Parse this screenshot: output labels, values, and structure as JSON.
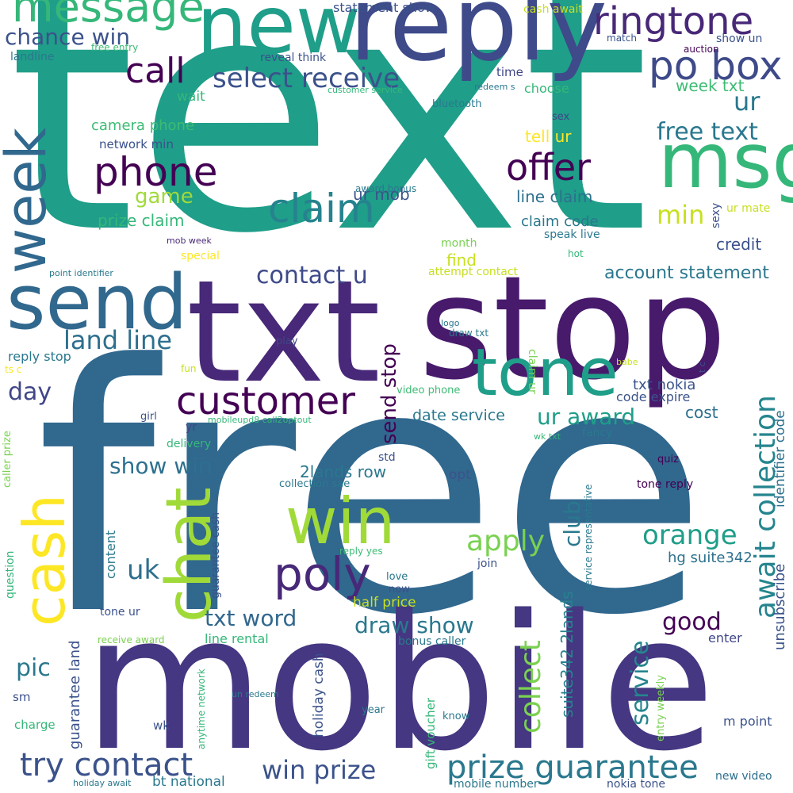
{
  "wordcloud": {
    "words": [
      {
        "text": "text",
        "color": "#1f9e89"
      },
      {
        "text": "free",
        "color": "#31688e"
      },
      {
        "text": "mobile",
        "color": "#453781"
      },
      {
        "text": "txt",
        "color": "#482878"
      },
      {
        "text": "stop",
        "color": "#481a6c"
      },
      {
        "text": "reply",
        "color": "#3e4a89"
      },
      {
        "text": "new",
        "color": "#1f9e89"
      },
      {
        "text": "send",
        "color": "#31688e"
      },
      {
        "text": "msg",
        "color": "#35b779"
      },
      {
        "text": "tone",
        "color": "#1f9e89"
      },
      {
        "text": "win",
        "color": "#a0da39"
      },
      {
        "text": "chat",
        "color": "#a0da39"
      },
      {
        "text": "cash",
        "color": "#fde725"
      },
      {
        "text": "week",
        "color": "#31688e"
      },
      {
        "text": "message",
        "color": "#35b779"
      },
      {
        "text": "ringtone",
        "color": "#482878"
      },
      {
        "text": "po box",
        "color": "#3e4a89"
      },
      {
        "text": "phone",
        "color": "#440154"
      },
      {
        "text": "claim",
        "color": "#26828e"
      },
      {
        "text": "offer",
        "color": "#440154"
      },
      {
        "text": "customer",
        "color": "#440154"
      },
      {
        "text": "poly",
        "color": "#482878"
      },
      {
        "text": "prize guarantee",
        "color": "#2a788e"
      },
      {
        "text": "try contact",
        "color": "#3b528b"
      },
      {
        "text": "call",
        "color": "#440154"
      },
      {
        "text": "select receive",
        "color": "#3b528b"
      },
      {
        "text": "chance win",
        "color": "#3b528b"
      },
      {
        "text": "await collection",
        "color": "#25858e"
      },
      {
        "text": "free text",
        "color": "#2a788e"
      },
      {
        "text": "orange",
        "color": "#1f9e89"
      },
      {
        "text": "contact u",
        "color": "#3e4a89"
      },
      {
        "text": "land line",
        "color": "#2e6f8e"
      },
      {
        "text": "account statement",
        "color": "#2a788e"
      },
      {
        "text": "win prize",
        "color": "#3b528b"
      },
      {
        "text": "customer",
        "color": "#440154"
      },
      {
        "text": "apply",
        "color": "#7ad151"
      },
      {
        "text": "collect",
        "color": "#7ad151"
      },
      {
        "text": "service",
        "color": "#25858e"
      },
      {
        "text": "draw show",
        "color": "#2a788e"
      },
      {
        "text": "send stop",
        "color": "#440154"
      },
      {
        "text": "ur award",
        "color": "#1f9e89"
      },
      {
        "text": "club",
        "color": "#2a788e"
      },
      {
        "text": "txt word",
        "color": "#31688e"
      },
      {
        "text": "show win",
        "color": "#2d708e"
      },
      {
        "text": "uk",
        "color": "#2e6f8e"
      },
      {
        "text": "day",
        "color": "#404688"
      },
      {
        "text": "min",
        "color": "#c8e020"
      },
      {
        "text": "ur",
        "color": "#2a788e"
      },
      {
        "text": "game",
        "color": "#a0da39"
      },
      {
        "text": "pic",
        "color": "#2a788e"
      },
      {
        "text": "good",
        "color": "#440154"
      },
      {
        "text": "prize claim",
        "color": "#35b779"
      },
      {
        "text": "ur mob",
        "color": "#3b528b"
      },
      {
        "text": "camera phone",
        "color": "#3dbc74"
      },
      {
        "text": "network min",
        "color": "#3b528b"
      },
      {
        "text": "week txt",
        "color": "#3dbc74"
      },
      {
        "text": "tell ur",
        "color": "#fde725"
      },
      {
        "text": "line claim",
        "color": "#2d708e"
      },
      {
        "text": "claim code",
        "color": "#2a788e"
      },
      {
        "text": "find",
        "color": "#c8e020"
      },
      {
        "text": "credit",
        "color": "#3b528b"
      },
      {
        "text": "cost",
        "color": "#2d708e"
      },
      {
        "text": "date service",
        "color": "#2a788e"
      },
      {
        "text": "2lands row",
        "color": "#2a788e"
      },
      {
        "text": "txt nokia",
        "color": "#3b528b"
      },
      {
        "text": "code expire",
        "color": "#3b528b"
      },
      {
        "text": "identifier code",
        "color": "#2d708e"
      },
      {
        "text": "unsubscribe",
        "color": "#3b528b"
      },
      {
        "text": "hg suite342",
        "color": "#2d708e"
      },
      {
        "text": "suite342 2lands",
        "color": "#26828e"
      },
      {
        "text": "half price",
        "color": "#c8e020"
      },
      {
        "text": "enter",
        "color": "#404688"
      },
      {
        "text": "m point",
        "color": "#3b528b"
      },
      {
        "text": "new video",
        "color": "#2d708e"
      },
      {
        "text": "nokia tone",
        "color": "#3b528b"
      },
      {
        "text": "mobile number",
        "color": "#2a788e"
      },
      {
        "text": "bt national",
        "color": "#2a788e"
      },
      {
        "text": "holiday cash",
        "color": "#3b528b"
      },
      {
        "text": "guarantee land",
        "color": "#3b528b"
      },
      {
        "text": "line rental",
        "color": "#35b779"
      },
      {
        "text": "reply stop",
        "color": "#2a788e"
      },
      {
        "text": "statement show",
        "color": "#3b528b"
      },
      {
        "text": "cash await",
        "color": "#c8e020"
      },
      {
        "text": "landline",
        "color": "#2a788e"
      },
      {
        "text": "free entry",
        "color": "#3dbc74"
      },
      {
        "text": "reveal think",
        "color": "#3b528b"
      },
      {
        "text": "time",
        "color": "#404688"
      },
      {
        "text": "choose",
        "color": "#35b779"
      },
      {
        "text": "match",
        "color": "#3b528b"
      },
      {
        "text": "auction",
        "color": "#440154"
      },
      {
        "text": "show un",
        "color": "#3b528b"
      },
      {
        "text": "customer service",
        "color": "#35b779"
      },
      {
        "text": "redeem s",
        "color": "#2a788e"
      },
      {
        "text": "wait",
        "color": "#35b779"
      },
      {
        "text": "bluetooth",
        "color": "#2a788e"
      },
      {
        "text": "sex",
        "color": "#404688"
      },
      {
        "text": "award bonus",
        "color": "#2a788e"
      },
      {
        "text": "speak live",
        "color": "#2a788e"
      },
      {
        "text": "sexy",
        "color": "#3b528b"
      },
      {
        "text": "ur mate",
        "color": "#c8e020"
      },
      {
        "text": "mob week",
        "color": "#482878"
      },
      {
        "text": "special",
        "color": "#fde725"
      },
      {
        "text": "month",
        "color": "#7ad151"
      },
      {
        "text": "hot",
        "color": "#35b779"
      },
      {
        "text": "attempt contact",
        "color": "#c8e020"
      },
      {
        "text": "point identifier",
        "color": "#2a788e"
      },
      {
        "text": "logo",
        "color": "#2a788e"
      },
      {
        "text": "draw txt",
        "color": "#2a788e"
      },
      {
        "text": "play",
        "color": "#404688"
      },
      {
        "text": "claim ur",
        "color": "#7ad151"
      },
      {
        "text": "babe",
        "color": "#c8e020"
      },
      {
        "text": "t c",
        "color": "#3b528b"
      },
      {
        "text": "ts c",
        "color": "#fde725"
      },
      {
        "text": "fun",
        "color": "#c8e020"
      },
      {
        "text": "video phone",
        "color": "#3dbc74"
      },
      {
        "text": "fancy",
        "color": "#2a788e"
      },
      {
        "text": "wk txt",
        "color": "#35b779"
      },
      {
        "text": "girl",
        "color": "#3b528b"
      },
      {
        "text": "yr",
        "color": "#404688"
      },
      {
        "text": "delivery",
        "color": "#35b779"
      },
      {
        "text": "mobileupd8 call2optout",
        "color": "#35b779"
      },
      {
        "text": "caller prize",
        "color": "#7ad151"
      },
      {
        "text": "guarantee cash",
        "color": "#3b528b"
      },
      {
        "text": "std",
        "color": "#3b528b"
      },
      {
        "text": "opt",
        "color": "#3b528b"
      },
      {
        "text": "collection sae",
        "color": "#2a788e"
      },
      {
        "text": "service representative",
        "color": "#2a788e"
      },
      {
        "text": "quiz",
        "color": "#440154"
      },
      {
        "text": "tone reply",
        "color": "#440154"
      },
      {
        "text": "content",
        "color": "#2a788e"
      },
      {
        "text": "question",
        "color": "#35b779"
      },
      {
        "text": "reply yes",
        "color": "#3dbc74"
      },
      {
        "text": "join",
        "color": "#3b528b"
      },
      {
        "text": "love",
        "color": "#2a788e"
      },
      {
        "text": "now",
        "color": "#3b528b"
      },
      {
        "text": "tone ur",
        "color": "#3b528b"
      },
      {
        "text": "receive award",
        "color": "#7ad151"
      },
      {
        "text": "bonus caller",
        "color": "#2a788e"
      },
      {
        "text": "entry weekly",
        "color": "#7ad151"
      },
      {
        "text": "anytime network",
        "color": "#35b779"
      },
      {
        "text": "sm",
        "color": "#3b528b"
      },
      {
        "text": "charge",
        "color": "#35b779"
      },
      {
        "text": "wk",
        "color": "#3b528b"
      },
      {
        "text": "un redeem",
        "color": "#2a788e"
      },
      {
        "text": "year",
        "color": "#2a788e"
      },
      {
        "text": "gift voucher",
        "color": "#35b779"
      },
      {
        "text": "know",
        "color": "#2a788e"
      },
      {
        "text": "holiday await",
        "color": "#2a788e"
      }
    ]
  }
}
